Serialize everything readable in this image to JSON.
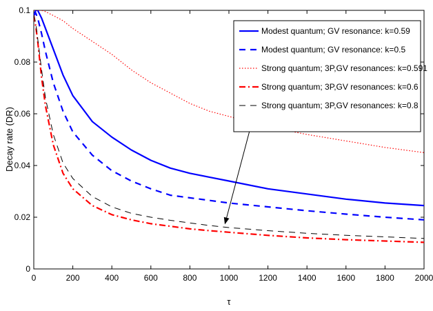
{
  "chart_data": {
    "type": "line",
    "xlabel": "τ",
    "ylabel": "Decay rate (DR)",
    "xlim": [
      0,
      2000
    ],
    "ylim": [
      0,
      0.1
    ],
    "x_ticks": [
      "0",
      "200",
      "400",
      "600",
      "800",
      "1000",
      "1200",
      "1400",
      "1600",
      "1800",
      "2000"
    ],
    "y_ticks": [
      "0",
      "0.02",
      "0.04",
      "0.06",
      "0.08",
      "0.1"
    ],
    "grid": false,
    "legend_position": "top-right",
    "x": [
      0,
      10,
      20,
      40,
      60,
      100,
      150,
      200,
      300,
      400,
      500,
      600,
      700,
      800,
      900,
      1000,
      1200,
      1400,
      1600,
      1800,
      2000
    ],
    "series": [
      {
        "name": "Modest quantum; GV resonance: k=0.59",
        "color": "#0000ff",
        "style": "solid",
        "values": [
          0.098,
          0.1,
          0.1,
          0.097,
          0.093,
          0.085,
          0.075,
          0.067,
          0.057,
          0.051,
          0.046,
          0.042,
          0.039,
          0.037,
          0.0355,
          0.034,
          0.031,
          0.029,
          0.027,
          0.0255,
          0.0245
        ]
      },
      {
        "name": "Modest quantum; GV resonance: k=0.5",
        "color": "#0000ff",
        "style": "dash",
        "values": [
          0.098,
          0.099,
          0.097,
          0.091,
          0.084,
          0.072,
          0.061,
          0.053,
          0.044,
          0.038,
          0.034,
          0.031,
          0.0285,
          0.0275,
          0.0265,
          0.0255,
          0.024,
          0.0225,
          0.0212,
          0.02,
          0.019
        ]
      },
      {
        "name": "Strong quantum; 3P,GV resonances: k=0.591",
        "color": "#ff0000",
        "style": "dot",
        "values": [
          0.1,
          0.1,
          0.1,
          0.1,
          0.0995,
          0.098,
          0.096,
          0.093,
          0.088,
          0.083,
          0.077,
          0.072,
          0.068,
          0.064,
          0.061,
          0.059,
          0.055,
          0.052,
          0.0495,
          0.047,
          0.045
        ]
      },
      {
        "name": "Strong quantum; 3P,GV resonances: k=0.6",
        "color": "#ff0000",
        "style": "dashdot",
        "values": [
          0.098,
          0.094,
          0.088,
          0.074,
          0.063,
          0.048,
          0.037,
          0.031,
          0.0245,
          0.021,
          0.019,
          0.0175,
          0.0165,
          0.0155,
          0.0148,
          0.0142,
          0.013,
          0.012,
          0.0113,
          0.0108,
          0.0103
        ]
      },
      {
        "name": "Strong quantum; 3P,GV resonances: k=0.8",
        "color": "#000000",
        "style": "dash",
        "values": [
          0.098,
          0.095,
          0.089,
          0.077,
          0.066,
          0.052,
          0.041,
          0.035,
          0.028,
          0.024,
          0.0215,
          0.02,
          0.0188,
          0.0178,
          0.0168,
          0.016,
          0.0148,
          0.0138,
          0.013,
          0.0124,
          0.0118
        ]
      }
    ],
    "annotation": {
      "type": "arrow",
      "from": [
        1180,
        0.0745
      ],
      "to": [
        980,
        0.0175
      ]
    }
  }
}
